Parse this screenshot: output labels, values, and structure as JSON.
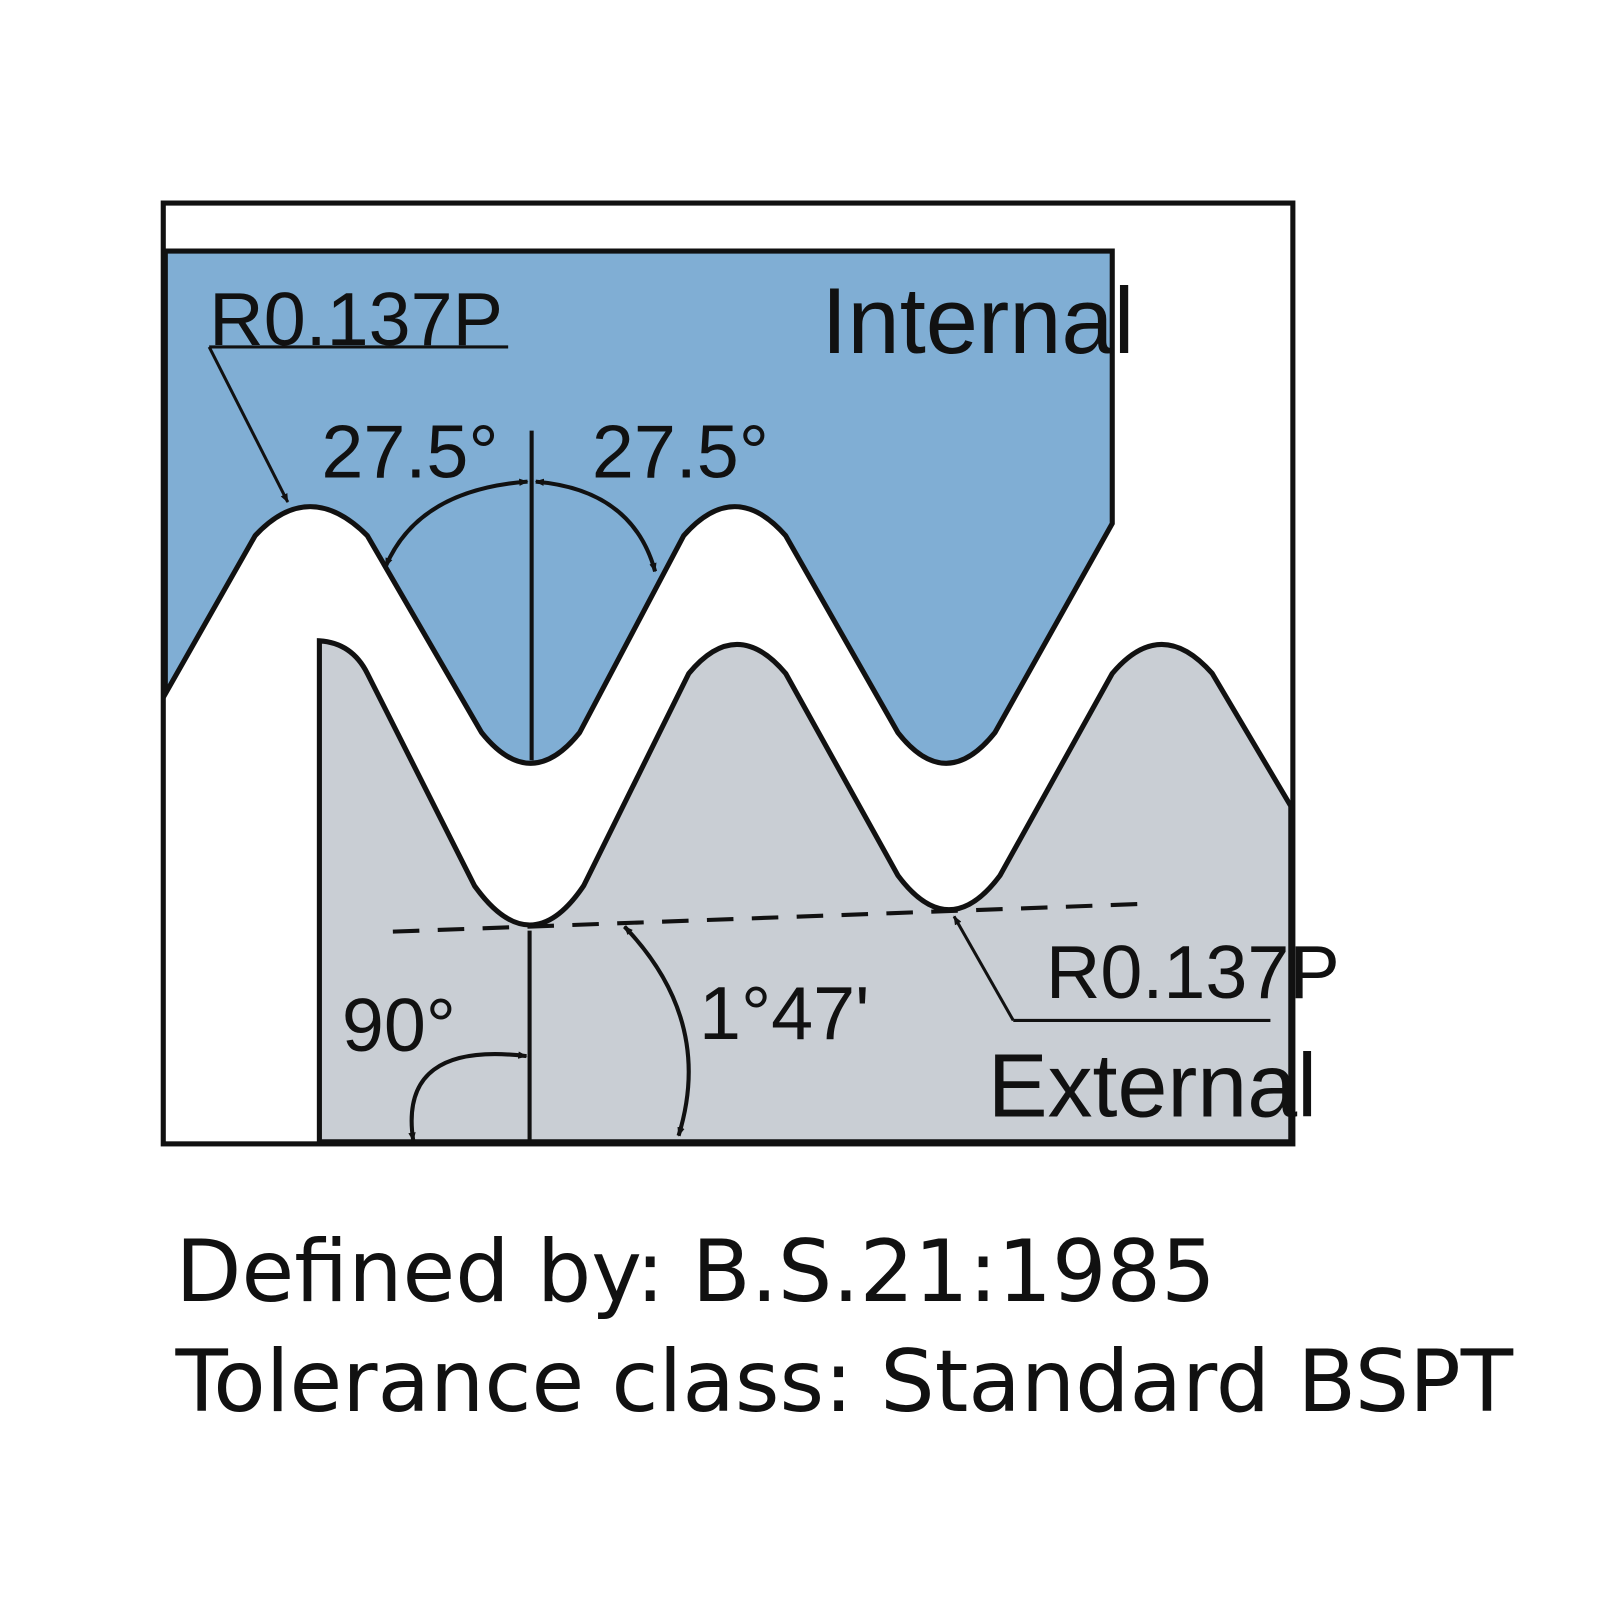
{
  "diagram": {
    "internal": {
      "label": "Internal",
      "radius": "R0.137P",
      "flank_angle_left": "27.5°",
      "flank_angle_right": "27.5°"
    },
    "external": {
      "label": "External",
      "radius": "R0.137P",
      "axis_angle": "90°",
      "taper_angle": "1°47'"
    }
  },
  "caption": {
    "line1": "Defined by: B.S.21:1985",
    "line2": "Tolerance class: Standard BSPT"
  }
}
